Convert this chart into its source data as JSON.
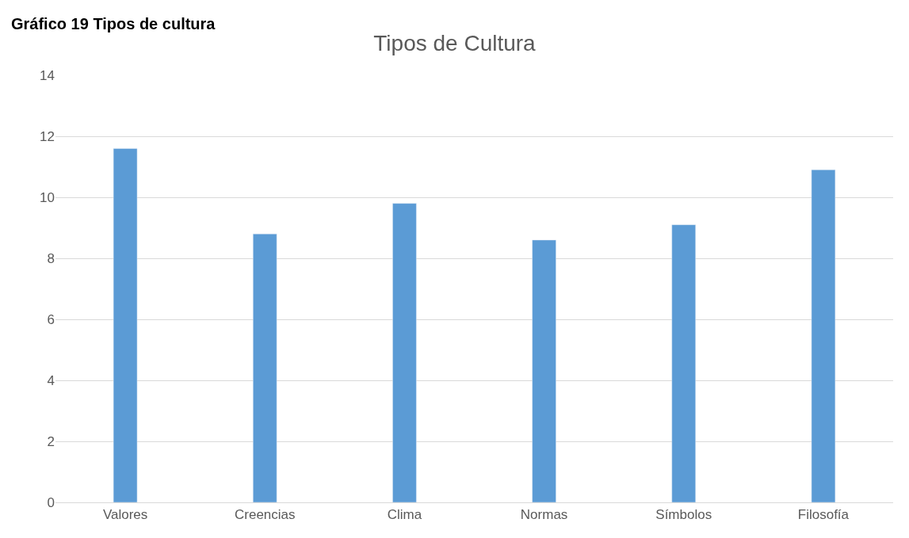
{
  "chart_data": {
    "type": "bar",
    "title": "Tipos de Cultura",
    "annotations": [
      "Gráfico 19 Tipos de cultura"
    ],
    "categories": [
      "Valores",
      "Creencias",
      "Clima",
      "Normas",
      "Símbolos",
      "Filosofía"
    ],
    "values": [
      11.6,
      8.8,
      9.8,
      8.6,
      9.1,
      10.9
    ],
    "color": "#5b9bd5",
    "ylim": [
      0,
      14
    ],
    "yticks": [
      0,
      2,
      4,
      6,
      8,
      10,
      12,
      14
    ],
    "grid": "y"
  }
}
